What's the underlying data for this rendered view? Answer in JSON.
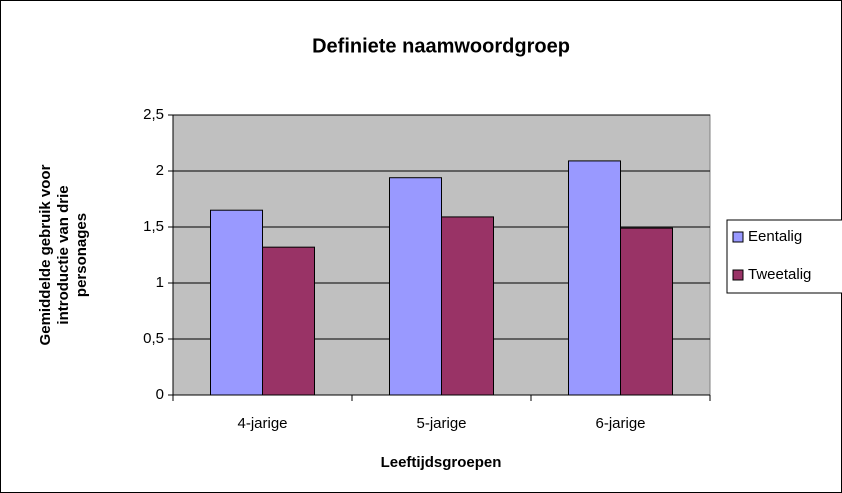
{
  "chart_data": {
    "type": "bar",
    "title": "Definiete naamwoordgroep",
    "x_label": "Leeftijdsgroepen",
    "y_label": [
      "Gemiddelde gebruik voor",
      "introductie van drie",
      "personages"
    ],
    "categories": [
      "4-jarige",
      "5-jarige",
      "6-jarige"
    ],
    "series": [
      {
        "name": "Eentalig",
        "color": "#9999ff",
        "values": [
          1.65,
          1.94,
          2.09
        ]
      },
      {
        "name": "Tweetalig",
        "color": "#993366",
        "values": [
          1.32,
          1.59,
          1.49
        ]
      }
    ],
    "ylim": [
      0,
      2.5
    ],
    "yticks": [
      0,
      {
        "value": 0.5,
        "label": "0,5"
      },
      1,
      {
        "value": 1.5,
        "label": "1,5"
      },
      2,
      {
        "value": 2.5,
        "label": "2,5"
      }
    ],
    "grid": true,
    "legend": "right"
  }
}
